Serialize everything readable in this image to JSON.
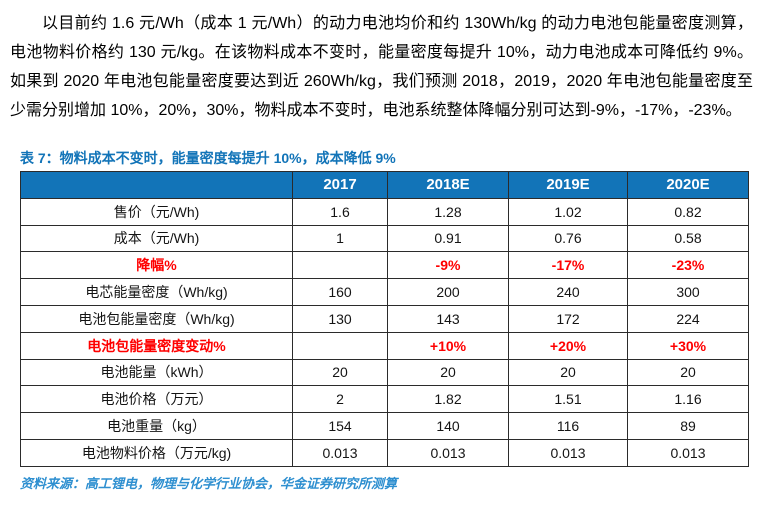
{
  "paragraph": "以目前约 1.6 元/Wh（成本 1 元/Wh）的动力电池均价和约 130Wh/kg 的动力电池包能量密度测算，电池物料价格约 130 元/kg。在该物料成本不变时，能量密度每提升 10%，动力电池成本可降低约 9%。如果到 2020 年电池包能量密度要达到近 260Wh/kg，我们预测 2018，2019，2020 年电池包能量密度至少需分别增加 10%，20%，30%，物料成本不变时，电池系统整体降幅分别可达到-9%，-17%，-23%。",
  "table": {
    "title": "表 7：物料成本不变时，能量密度每提升 10%，成本降低 9%",
    "columns": [
      "",
      "2017",
      "2018E",
      "2019E",
      "2020E"
    ],
    "rows": [
      {
        "label": "售价（元/Wh)",
        "values": [
          "1.6",
          "1.28",
          "1.02",
          "0.82"
        ],
        "highlight": false
      },
      {
        "label": "成本（元/Wh)",
        "values": [
          "1",
          "0.91",
          "0.76",
          "0.58"
        ],
        "highlight": false
      },
      {
        "label": "降幅%",
        "values": [
          "",
          "-9%",
          "-17%",
          "-23%"
        ],
        "highlight": true
      },
      {
        "label": "电芯能量密度（Wh/kg)",
        "values": [
          "160",
          "200",
          "240",
          "300"
        ],
        "highlight": false
      },
      {
        "label": "电池包能量密度（Wh/kg)",
        "values": [
          "130",
          "143",
          "172",
          "224"
        ],
        "highlight": false
      },
      {
        "label": "电池包能量密度变动%",
        "values": [
          "",
          "+10%",
          "+20%",
          "+30%"
        ],
        "highlight": true
      },
      {
        "label": "电池能量（kWh）",
        "values": [
          "20",
          "20",
          "20",
          "20"
        ],
        "highlight": false
      },
      {
        "label": "电池价格（万元）",
        "values": [
          "2",
          "1.82",
          "1.51",
          "1.16"
        ],
        "highlight": false
      },
      {
        "label": "电池重量（kg）",
        "values": [
          "154",
          "140",
          "116",
          "89"
        ],
        "highlight": false
      },
      {
        "label": "电池物料价格（万元/kg)",
        "values": [
          "0.013",
          "0.013",
          "0.013",
          "0.013"
        ],
        "highlight": false
      }
    ],
    "source": "资料来源：高工锂电，物理与化学行业协会，华金证券研究所测算"
  },
  "colors": {
    "accent_blue": "#1274B8",
    "highlight_red": "#FF0000",
    "source_blue": "#2E8FD0",
    "border_dark": "#2b2b2b"
  }
}
